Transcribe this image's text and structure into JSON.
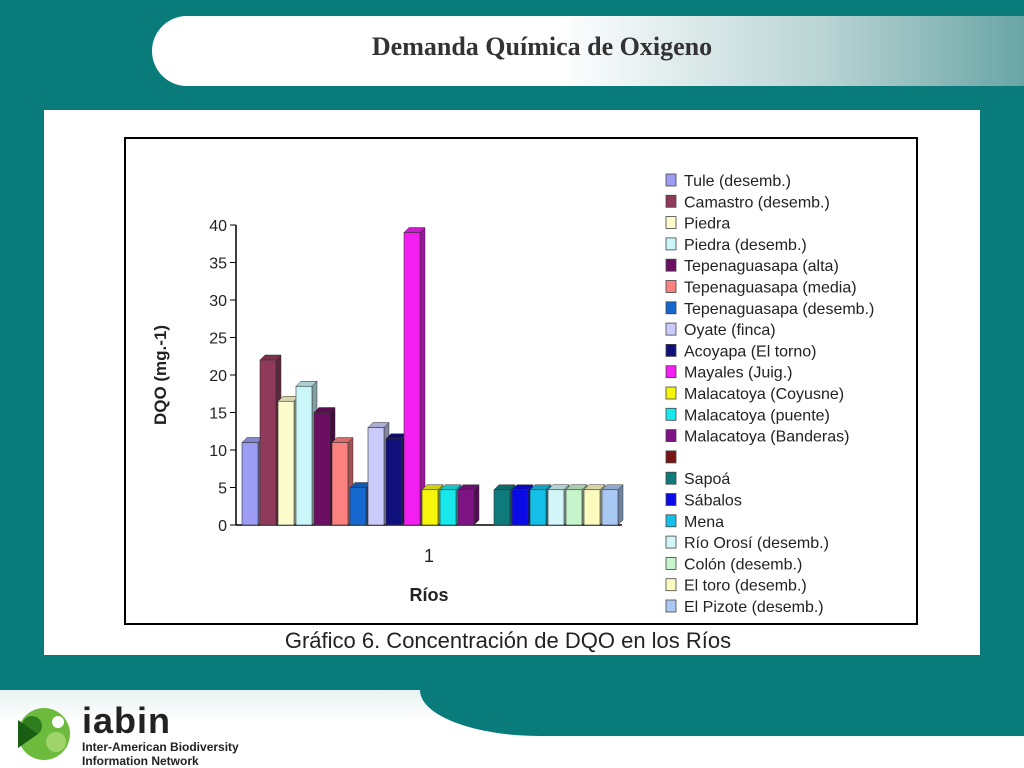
{
  "slide": {
    "title": "Demanda Química de Oxigeno"
  },
  "caption": "Gráfico 6. Concentración de DQO en los Ríos",
  "footer": {
    "logo_name": "iabin",
    "logo_sub1": "Inter-American Biodiversity",
    "logo_sub2": "Information Network"
  },
  "chart_data": {
    "type": "bar",
    "categories": [
      "1"
    ],
    "xlabel": "Ríos",
    "ylabel": "DQO (mg.-1)",
    "ylim": [
      0,
      40
    ],
    "yticks": [
      0,
      5,
      10,
      15,
      20,
      25,
      30,
      35,
      40
    ],
    "legend_position": "right",
    "grid": false,
    "series": [
      {
        "name": "Tule (desemb.)",
        "values": [
          11
        ],
        "color": "#9c9cf5"
      },
      {
        "name": "Camastro (desemb.)",
        "values": [
          22
        ],
        "color": "#8f3a5a"
      },
      {
        "name": "Piedra",
        "values": [
          16.5
        ],
        "color": "#fdfccc"
      },
      {
        "name": "Piedra (desemb.)",
        "values": [
          18.5
        ],
        "color": "#c9f6f8"
      },
      {
        "name": "Tepenaguasapa (alta)",
        "values": [
          15
        ],
        "color": "#6a0f62"
      },
      {
        "name": "Tepenaguasapa (media)",
        "values": [
          11
        ],
        "color": "#fb8080"
      },
      {
        "name": "Tepenaguasapa (desemb.)",
        "values": [
          5
        ],
        "color": "#1468d0"
      },
      {
        "name": "Oyate (finca)",
        "values": [
          13
        ],
        "color": "#cbcbfb"
      },
      {
        "name": "Acoyapa (El torno)",
        "values": [
          11.5
        ],
        "color": "#10107c"
      },
      {
        "name": "Mayales (Juig.)",
        "values": [
          39
        ],
        "color": "#f21ef2"
      },
      {
        "name": "Malacatoya  (Coyusne)",
        "values": [
          4.7
        ],
        "color": "#f6f60c"
      },
      {
        "name": "Malacatoya (puente)",
        "values": [
          4.7
        ],
        "color": "#16e8ec"
      },
      {
        "name": "Malacatoya (Banderas)",
        "values": [
          4.7
        ],
        "color": "#7e1384"
      },
      {
        "name": "",
        "values": [
          0
        ],
        "color": "#7a1414"
      },
      {
        "name": "Sapoá",
        "values": [
          4.7
        ],
        "color": "#0f7a7c"
      },
      {
        "name": "Sábalos",
        "values": [
          4.7
        ],
        "color": "#0a0ae6"
      },
      {
        "name": "Mena",
        "values": [
          4.7
        ],
        "color": "#14bfe8"
      },
      {
        "name": "Río Orosí (desemb.)",
        "values": [
          4.7
        ],
        "color": "#d2f6f8"
      },
      {
        "name": "Colón (desemb.)",
        "values": [
          4.7
        ],
        "color": "#c7f5cb"
      },
      {
        "name": "El toro  (desemb.)",
        "values": [
          4.7
        ],
        "color": "#fbfbc0"
      },
      {
        "name": "El Pizote (desemb.)",
        "values": [
          4.7
        ],
        "color": "#a9c9f4"
      }
    ]
  }
}
